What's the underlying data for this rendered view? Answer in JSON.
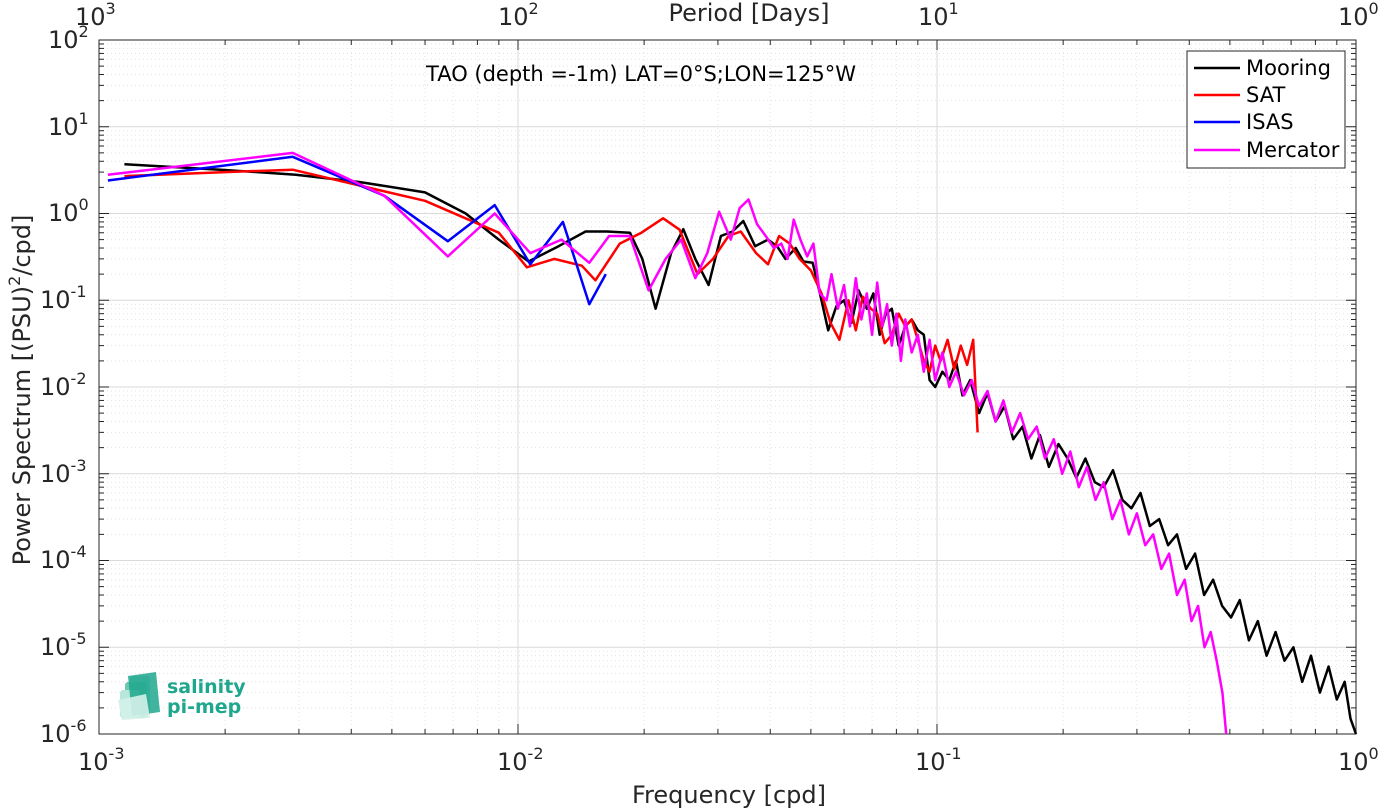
{
  "chart_data": {
    "type": "line",
    "title": "TAO (depth =-1m) LAT=0°S;LON=125°W",
    "xlabel": "Frequency [cpd]",
    "ylabel_main": "Power Spectrum [(PSU)",
    "ylabel_sup": "2",
    "ylabel_tail": "/cpd]",
    "top_xlabel": "Period [Days]",
    "x_scale": "log",
    "y_scale": "log",
    "xlim": [
      0.001,
      1
    ],
    "ylim": [
      1e-06,
      100
    ],
    "grid": true,
    "legend_position": "top-right",
    "x_ticks": [
      {
        "base": "10",
        "exp": "-3"
      },
      {
        "base": "10",
        "exp": "-2"
      },
      {
        "base": "10",
        "exp": "-1"
      },
      {
        "base": "10",
        "exp": "0"
      }
    ],
    "y_ticks": [
      {
        "base": "10",
        "exp": "-6"
      },
      {
        "base": "10",
        "exp": "-5"
      },
      {
        "base": "10",
        "exp": "-4"
      },
      {
        "base": "10",
        "exp": "-3"
      },
      {
        "base": "10",
        "exp": "-2"
      },
      {
        "base": "10",
        "exp": "-1"
      },
      {
        "base": "10",
        "exp": "0"
      },
      {
        "base": "10",
        "exp": "1"
      },
      {
        "base": "10",
        "exp": "2"
      }
    ],
    "top_ticks": [
      {
        "base": "10",
        "exp": "3"
      },
      {
        "base": "10",
        "exp": "2"
      },
      {
        "base": "10",
        "exp": "1"
      },
      {
        "base": "10",
        "exp": "0"
      }
    ],
    "series": [
      {
        "name": "Mooring",
        "color": "#000000",
        "x": [
          0.00115,
          0.00195,
          0.00295,
          0.0042,
          0.006,
          0.0075,
          0.009,
          0.0106,
          0.0125,
          0.0145,
          0.0163,
          0.0185,
          0.0198,
          0.0213,
          0.0232,
          0.0248,
          0.0265,
          0.0285,
          0.0305,
          0.0325,
          0.0345,
          0.0368,
          0.0395,
          0.0415,
          0.0435,
          0.046,
          0.048,
          0.0505,
          0.053,
          0.055,
          0.0575,
          0.06,
          0.0625,
          0.065,
          0.068,
          0.0705,
          0.073,
          0.0755,
          0.078,
          0.081,
          0.084,
          0.087,
          0.09,
          0.093,
          0.096,
          0.099,
          0.103,
          0.107,
          0.111,
          0.115,
          0.12,
          0.126,
          0.132,
          0.138,
          0.145,
          0.152,
          0.16,
          0.168,
          0.176,
          0.185,
          0.195,
          0.205,
          0.215,
          0.226,
          0.238,
          0.25,
          0.263,
          0.277,
          0.291,
          0.306,
          0.322,
          0.339,
          0.356,
          0.374,
          0.393,
          0.413,
          0.434,
          0.456,
          0.479,
          0.503,
          0.528,
          0.555,
          0.583,
          0.612,
          0.643,
          0.675,
          0.709,
          0.744,
          0.781,
          0.82,
          0.86,
          0.9,
          0.94,
          0.97,
          1.0
        ],
        "y": [
          3.7,
          3.2,
          2.8,
          2.3,
          1.75,
          1.0,
          0.5,
          0.28,
          0.42,
          0.62,
          0.62,
          0.6,
          0.3,
          0.08,
          0.35,
          0.66,
          0.3,
          0.15,
          0.55,
          0.62,
          0.82,
          0.42,
          0.5,
          0.42,
          0.3,
          0.4,
          0.28,
          0.27,
          0.1,
          0.045,
          0.085,
          0.1,
          0.055,
          0.13,
          0.08,
          0.12,
          0.04,
          0.07,
          0.08,
          0.03,
          0.05,
          0.06,
          0.045,
          0.04,
          0.012,
          0.01,
          0.015,
          0.012,
          0.02,
          0.008,
          0.012,
          0.005,
          0.0085,
          0.004,
          0.006,
          0.0025,
          0.0035,
          0.0015,
          0.0028,
          0.0012,
          0.0022,
          0.0015,
          0.0009,
          0.0015,
          0.0008,
          0.0007,
          0.0011,
          0.0005,
          0.0004,
          0.0006,
          0.00025,
          0.0003,
          0.00015,
          0.0002,
          8e-05,
          0.00012,
          4e-05,
          6e-05,
          3e-05,
          2.2e-05,
          3.5e-05,
          1.2e-05,
          2e-05,
          8e-06,
          1.5e-05,
          7e-06,
          1e-05,
          4e-06,
          8e-06,
          3e-06,
          6e-06,
          2.5e-06,
          4e-06,
          1.5e-06,
          1e-06
        ]
      },
      {
        "name": "SAT",
        "color": "#ff0000",
        "x": [
          0.00115,
          0.002,
          0.0029,
          0.0048,
          0.006,
          0.009,
          0.0105,
          0.0122,
          0.0142,
          0.0153,
          0.0175,
          0.0197,
          0.0222,
          0.0243,
          0.0268,
          0.0292,
          0.0318,
          0.034,
          0.037,
          0.0395,
          0.042,
          0.0445,
          0.047,
          0.05,
          0.053,
          0.0557,
          0.0585,
          0.0615,
          0.064,
          0.0665,
          0.0695,
          0.072,
          0.075,
          0.078,
          0.081,
          0.084,
          0.087,
          0.09,
          0.093,
          0.096,
          0.099,
          0.102,
          0.106,
          0.11,
          0.114,
          0.118,
          0.122,
          0.125
        ],
        "y": [
          2.7,
          3.0,
          3.2,
          1.8,
          1.4,
          0.6,
          0.24,
          0.3,
          0.25,
          0.17,
          0.45,
          0.6,
          0.88,
          0.65,
          0.2,
          0.3,
          0.55,
          0.62,
          0.35,
          0.26,
          0.55,
          0.45,
          0.3,
          0.22,
          0.12,
          0.055,
          0.035,
          0.1,
          0.045,
          0.11,
          0.08,
          0.07,
          0.032,
          0.04,
          0.07,
          0.05,
          0.06,
          0.035,
          0.02,
          0.015,
          0.03,
          0.02,
          0.035,
          0.016,
          0.03,
          0.018,
          0.035,
          0.003
        ]
      },
      {
        "name": "ISAS",
        "color": "#0000ff",
        "x": [
          0.00105,
          0.0029,
          0.0048,
          0.0068,
          0.0088,
          0.0107,
          0.0128,
          0.0148,
          0.0162
        ],
        "y": [
          2.4,
          4.5,
          1.6,
          0.48,
          1.25,
          0.26,
          0.8,
          0.09,
          0.2
        ]
      },
      {
        "name": "Mercator",
        "color": "#ff00ff",
        "x": [
          0.00105,
          0.0029,
          0.0048,
          0.0068,
          0.0088,
          0.0107,
          0.0127,
          0.0148,
          0.0165,
          0.0185,
          0.0205,
          0.0225,
          0.0245,
          0.0265,
          0.0283,
          0.0302,
          0.0322,
          0.0338,
          0.0355,
          0.0372,
          0.039,
          0.0408,
          0.0425,
          0.044,
          0.0455,
          0.0472,
          0.049,
          0.0507,
          0.0525,
          0.0545,
          0.056,
          0.058,
          0.06,
          0.062,
          0.064,
          0.066,
          0.068,
          0.07,
          0.072,
          0.074,
          0.076,
          0.078,
          0.08,
          0.082,
          0.084,
          0.087,
          0.09,
          0.093,
          0.096,
          0.099,
          0.103,
          0.107,
          0.111,
          0.116,
          0.121,
          0.126,
          0.132,
          0.138,
          0.144,
          0.151,
          0.158,
          0.165,
          0.173,
          0.181,
          0.19,
          0.199,
          0.208,
          0.218,
          0.228,
          0.239,
          0.25,
          0.262,
          0.274,
          0.287,
          0.3,
          0.314,
          0.328,
          0.343,
          0.358,
          0.374,
          0.39,
          0.405,
          0.42,
          0.435,
          0.45,
          0.465,
          0.48,
          0.49
        ],
        "y": [
          2.8,
          5.0,
          1.6,
          0.32,
          1.0,
          0.35,
          0.5,
          0.27,
          0.55,
          0.55,
          0.13,
          0.3,
          0.5,
          0.18,
          0.35,
          1.05,
          0.5,
          1.15,
          1.45,
          0.75,
          0.55,
          0.4,
          0.45,
          0.3,
          0.85,
          0.5,
          0.32,
          0.45,
          0.12,
          0.1,
          0.2,
          0.08,
          0.15,
          0.05,
          0.18,
          0.06,
          0.12,
          0.04,
          0.16,
          0.05,
          0.09,
          0.03,
          0.07,
          0.02,
          0.06,
          0.025,
          0.04,
          0.015,
          0.035,
          0.012,
          0.025,
          0.01,
          0.015,
          0.008,
          0.012,
          0.006,
          0.009,
          0.004,
          0.007,
          0.003,
          0.005,
          0.0025,
          0.0035,
          0.0015,
          0.0025,
          0.001,
          0.0018,
          0.0007,
          0.0012,
          0.0005,
          0.0008,
          0.0003,
          0.0005,
          0.0002,
          0.00035,
          0.00015,
          0.0002,
          8e-05,
          0.00012,
          4e-05,
          6e-05,
          2e-05,
          3e-05,
          1e-05,
          1.5e-05,
          7e-06,
          3e-06,
          1e-06
        ]
      }
    ]
  },
  "logo": {
    "line1": "salinity",
    "line2": "pi-mep",
    "color": "#1fa78e"
  }
}
